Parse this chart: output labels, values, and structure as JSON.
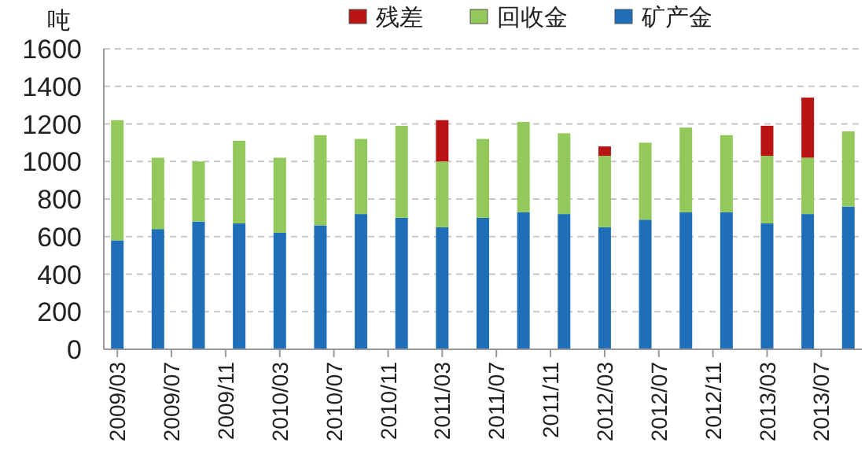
{
  "chart_data": {
    "type": "bar",
    "stacked": true,
    "ylabel": "吨",
    "x": [
      "2009-03",
      "2009-06",
      "2009-09",
      "2009-12",
      "2010-03",
      "2010-06",
      "2010-09",
      "2010-12",
      "2011-03",
      "2011-06",
      "2011-09",
      "2011-12",
      "2012-03",
      "2012-06",
      "2012-09",
      "2012-12",
      "2013-03",
      "2013-06",
      "2013-09"
    ],
    "series": [
      {
        "name": "矿产金",
        "color": "#1f6fb8",
        "values": [
          580,
          640,
          680,
          670,
          620,
          660,
          720,
          700,
          650,
          700,
          730,
          720,
          650,
          690,
          730,
          730,
          670,
          720,
          760
        ]
      },
      {
        "name": "回收金",
        "color": "#92c95a",
        "values": [
          640,
          380,
          320,
          440,
          400,
          480,
          400,
          490,
          350,
          420,
          480,
          430,
          380,
          410,
          450,
          410,
          360,
          300,
          400
        ]
      },
      {
        "name": "残差",
        "color": "#b81414",
        "values": [
          null,
          null,
          null,
          null,
          null,
          null,
          null,
          null,
          220,
          null,
          null,
          null,
          50,
          null,
          null,
          null,
          160,
          320,
          null
        ]
      }
    ],
    "xlim": [
      "2009-02",
      "2013-10"
    ],
    "xticks": [
      {
        "value": "2009-03",
        "label": "2009/03"
      },
      {
        "value": "2009-07",
        "label": "2009/07"
      },
      {
        "value": "2009-11",
        "label": "2009/11"
      },
      {
        "value": "2010-03",
        "label": "2010/03"
      },
      {
        "value": "2010-07",
        "label": "2010/07"
      },
      {
        "value": "2010-11",
        "label": "2010/11"
      },
      {
        "value": "2011-03",
        "label": "2011/03"
      },
      {
        "value": "2011-07",
        "label": "2011/07"
      },
      {
        "value": "2011-11",
        "label": "2011/11"
      },
      {
        "value": "2012-03",
        "label": "2012/03"
      },
      {
        "value": "2012-07",
        "label": "2012/07"
      },
      {
        "value": "2012-11",
        "label": "2012/11"
      },
      {
        "value": "2013-03",
        "label": "2013/03"
      },
      {
        "value": "2013-07",
        "label": "2013/07"
      }
    ],
    "ylim": [
      0,
      1600
    ],
    "yticks": [
      0,
      200,
      400,
      600,
      800,
      1000,
      1200,
      1400,
      1600
    ],
    "grid": "y",
    "legend": "top"
  }
}
